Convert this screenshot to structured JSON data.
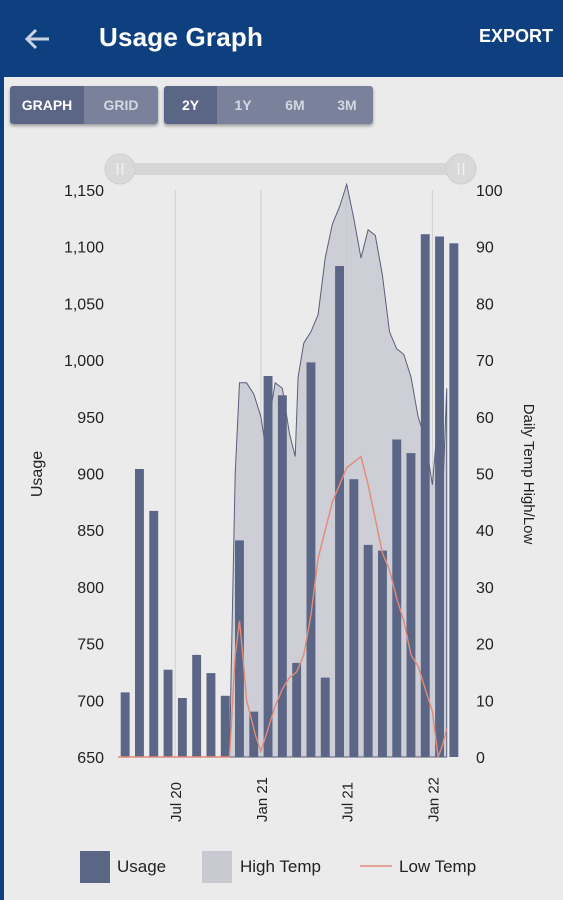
{
  "header": {
    "title": "Usage Graph",
    "export_label": "EXPORT"
  },
  "icons": {
    "back": "arrow-left-icon"
  },
  "view_toggle": {
    "options": [
      "GRAPH",
      "GRID"
    ],
    "selected": "GRAPH"
  },
  "range_toggle": {
    "options": [
      "2Y",
      "1Y",
      "6M",
      "3M"
    ],
    "selected": "2Y"
  },
  "range_slider": {
    "start_fraction": 0.0,
    "end_fraction": 1.0
  },
  "colors": {
    "header": "#0e4080",
    "bar": "#5b6585",
    "high_temp_fill": "#c9c9d2",
    "low_temp_line": "#e38a78"
  },
  "chart_data": {
    "type": "bar",
    "ylabel": "Usage",
    "y2label": "Daily Temp High/Low",
    "ylim": [
      650,
      1150
    ],
    "y_ticks": [
      650,
      700,
      750,
      800,
      850,
      900,
      950,
      1000,
      1050,
      1100,
      1150
    ],
    "y_tick_labels": [
      "650",
      "700",
      "750",
      "800",
      "850",
      "900",
      "950",
      "1,000",
      "1,050",
      "1,100",
      "1,150"
    ],
    "y2lim": [
      0,
      100
    ],
    "y2_ticks": [
      0,
      10,
      20,
      30,
      40,
      50,
      60,
      70,
      80,
      90,
      100
    ],
    "x_tick_labels": [
      "Jul 20",
      "Jan 21",
      "Jul 21",
      "Jan 22"
    ],
    "x_tick_positions": [
      4,
      10,
      16,
      22
    ],
    "grid": true,
    "series": [
      {
        "name": "Usage",
        "type": "bar",
        "axis": "left",
        "values": [
          707,
          904,
          867,
          727,
          702,
          740,
          724,
          704,
          841,
          690,
          986,
          969,
          733,
          998,
          720,
          1083,
          895,
          837,
          832,
          930,
          918,
          1111,
          1109,
          1103
        ]
      },
      {
        "name": "High Temp",
        "type": "area",
        "axis": "right",
        "x": [
          0,
          3,
          6,
          7.8,
          8,
          8.2,
          8.5,
          9,
          9.5,
          10,
          10.3,
          10.6,
          11,
          11.5,
          12,
          12.4,
          12.6,
          13,
          13.5,
          14,
          14.5,
          15,
          15.5,
          16,
          16.5,
          17,
          17.5,
          18,
          18.5,
          19,
          19.5,
          20,
          20.5,
          21,
          21.5,
          22,
          22.3,
          22.7,
          23
        ],
        "values": [
          0,
          0,
          0,
          0,
          25,
          50,
          66,
          66,
          64,
          60,
          55,
          60,
          66,
          65,
          57,
          53,
          67,
          73,
          75,
          78,
          88,
          94,
          97,
          101,
          95,
          88,
          93,
          92,
          85,
          75,
          72,
          71,
          67,
          60,
          56,
          48,
          57,
          45,
          65
        ]
      },
      {
        "name": "Low Temp",
        "type": "line",
        "axis": "right",
        "x": [
          0,
          3,
          6,
          7.8,
          8.2,
          8.5,
          8.7,
          9,
          9.3,
          9.6,
          10,
          10.5,
          11,
          11.5,
          12,
          12.5,
          13,
          13.5,
          14,
          14.5,
          15,
          15.5,
          16,
          16.5,
          17,
          17.5,
          18,
          18.5,
          19,
          19.5,
          20,
          20.5,
          21,
          21.5,
          22,
          22.4,
          22.7,
          23
        ],
        "values": [
          0,
          0,
          0,
          0,
          18,
          24,
          19,
          10,
          7,
          4,
          1,
          5,
          9,
          12,
          14,
          15,
          18,
          25,
          35,
          40,
          45,
          48,
          51,
          52,
          53,
          48,
          42,
          36,
          33,
          28,
          24,
          18,
          16,
          12,
          8,
          0,
          2,
          5
        ]
      }
    ],
    "legend": {
      "position": "bottom",
      "labels": [
        "Usage",
        "High Temp",
        "Low Temp"
      ]
    }
  }
}
